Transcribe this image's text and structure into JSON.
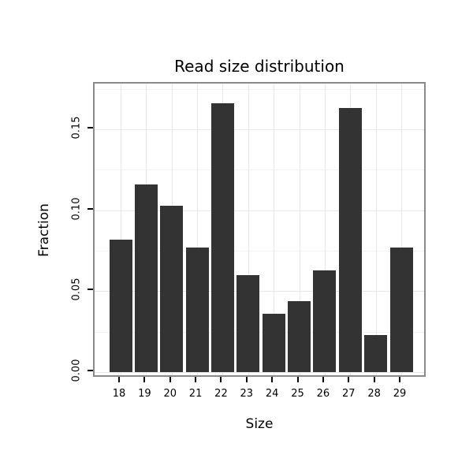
{
  "chart_data": {
    "type": "bar",
    "title": "Read size distribution",
    "xlabel": "Size",
    "ylabel": "Fraction",
    "categories": [
      "18",
      "19",
      "20",
      "21",
      "22",
      "23",
      "24",
      "25",
      "26",
      "27",
      "28",
      "29"
    ],
    "values": [
      0.082,
      0.116,
      0.103,
      0.077,
      0.166,
      0.06,
      0.036,
      0.044,
      0.063,
      0.163,
      0.023,
      0.077
    ],
    "ylim": [
      0,
      0.178
    ],
    "yticks": [
      0,
      0.05,
      0.1,
      0.15
    ],
    "ytick_labels": [
      "0.00",
      "0.05",
      "0.10",
      "0.15"
    ],
    "grid": true,
    "legend": "none",
    "bar_color": "#333333",
    "panel_border_color": "#8a8a8a",
    "grid_major_color": "#e8e8e8",
    "grid_minor_color": "#f3f3f3",
    "tick_color": "#000000",
    "text_color": "#000000"
  }
}
